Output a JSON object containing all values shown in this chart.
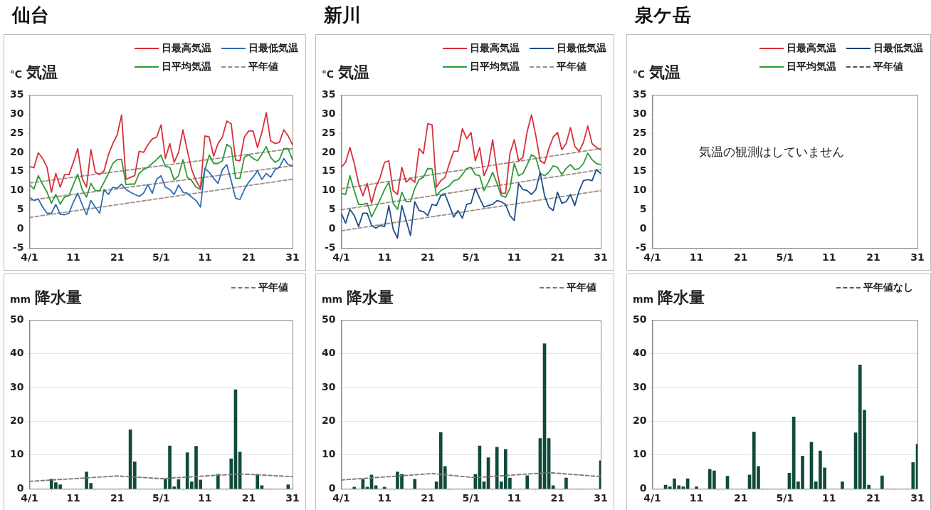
{
  "chart_data": [
    {
      "type": "line",
      "title": "仙台",
      "subtitle": "気温",
      "ylabel": "℃",
      "legend": "top right",
      "xlim": [
        "--04-01",
        "--05-31"
      ],
      "ylim": [
        -5,
        35
      ],
      "yticks": [
        -5,
        0,
        5,
        10,
        15,
        20,
        25,
        30,
        35
      ],
      "xticks": [
        {
          "value": "--04-01",
          "label": "4/1"
        },
        {
          "value": "--04-11",
          "label": "11"
        },
        {
          "value": "--04-21",
          "label": "21"
        },
        {
          "value": "--05-01",
          "label": "5/1"
        },
        {
          "value": "--05-11",
          "label": "11"
        },
        {
          "value": "--05-21",
          "label": "21"
        },
        {
          "value": "--05-31",
          "label": "31"
        }
      ],
      "x": [
        "--04-01",
        "--04-02",
        "--04-03",
        "--04-04",
        "--04-05",
        "--04-06",
        "--04-07",
        "--04-08",
        "--04-09",
        "--04-10",
        "--04-11",
        "--04-12",
        "--04-13",
        "--04-14",
        "--04-15",
        "--04-16",
        "--04-17",
        "--04-18",
        "--04-19",
        "--04-20",
        "--04-21",
        "--04-22",
        "--04-23",
        "--04-24",
        "--04-25",
        "--04-26",
        "--04-27",
        "--04-28",
        "--04-29",
        "--04-30",
        "--05-01",
        "--05-02",
        "--05-03",
        "--05-04",
        "--05-05",
        "--05-06",
        "--05-07",
        "--05-08",
        "--05-09",
        "--05-10",
        "--05-11",
        "--05-12",
        "--05-13",
        "--05-14",
        "--05-15",
        "--05-16",
        "--05-17",
        "--05-18",
        "--05-19",
        "--05-20",
        "--05-21",
        "--05-22",
        "--05-23",
        "--05-24",
        "--05-25",
        "--05-26",
        "--05-27",
        "--05-28",
        "--05-29",
        "--05-30",
        "--05-31"
      ],
      "series": [
        {
          "name": "日最高気温",
          "color": "#d7303a",
          "values": [
            16.3,
            16.0,
            19.9,
            18.4,
            16.1,
            9.6,
            14.5,
            10.9,
            14.2,
            14.2,
            17.4,
            21.0,
            13.2,
            10.9,
            20.7,
            14.8,
            14.2,
            15.2,
            19.4,
            22.3,
            24.6,
            29.8,
            12.9,
            13.5,
            13.9,
            20.3,
            20.0,
            22.0,
            23.5,
            24.0,
            27.2,
            18.4,
            22.3,
            17.4,
            20.0,
            25.9,
            20.4,
            15.5,
            12.6,
            10.6,
            24.3,
            24.0,
            19.0,
            22.3,
            24.0,
            28.2,
            27.5,
            18.0,
            17.8,
            24.0,
            25.6,
            25.6,
            21.3,
            25.2,
            30.4,
            23.0,
            22.3,
            22.6,
            25.9,
            24.3,
            22.0
          ]
        },
        {
          "name": "日最低気温",
          "color": "#2f6db5",
          "values": [
            8.3,
            7.4,
            7.8,
            5.7,
            4.1,
            4.1,
            6.4,
            3.8,
            3.7,
            4.1,
            7.0,
            9.3,
            6.4,
            3.7,
            7.4,
            5.7,
            4.1,
            10.3,
            9.0,
            10.9,
            10.6,
            11.7,
            10.3,
            9.6,
            9.0,
            8.5,
            9.3,
            11.6,
            9.3,
            13.0,
            13.9,
            10.9,
            10.3,
            9.0,
            11.5,
            9.6,
            9.3,
            8.3,
            7.4,
            5.7,
            15.8,
            14.8,
            13.2,
            11.9,
            15.5,
            16.8,
            12.6,
            8.0,
            7.7,
            10.3,
            12.2,
            13.5,
            15.2,
            12.9,
            14.5,
            13.5,
            15.5,
            16.1,
            18.4,
            16.8,
            16.5
          ]
        },
        {
          "name": "日平均気温",
          "color": "#2e9a3a",
          "values": [
            11.6,
            10.4,
            13.9,
            11.6,
            9.6,
            6.7,
            9.0,
            6.5,
            8.3,
            8.7,
            11.6,
            14.3,
            10.3,
            8.3,
            11.9,
            10.0,
            10.0,
            12.2,
            14.5,
            17.1,
            18.1,
            18.2,
            11.6,
            11.7,
            11.7,
            14.5,
            15.5,
            16.1,
            17.1,
            18.1,
            19.3,
            16.3,
            16.1,
            12.8,
            13.9,
            18.1,
            13.5,
            12.6,
            10.9,
            10.3,
            15.5,
            19.3,
            17.1,
            17.1,
            17.8,
            22.1,
            21.3,
            13.2,
            13.2,
            18.7,
            19.4,
            18.4,
            17.8,
            19.5,
            21.5,
            18.7,
            17.4,
            18.1,
            21.0,
            21.0,
            18.1
          ]
        },
        {
          "name": "平年値",
          "color": "#9b9089",
          "line_style": "dashed",
          "x": [
            "--04-01",
            "--05-31"
          ],
          "values": [
            12,
            21
          ]
        },
        {
          "color": "#9b9089",
          "line_style": "dashed",
          "x": [
            "--04-01",
            "--05-31"
          ],
          "values": [
            7.5,
            16.5
          ]
        },
        {
          "color": "#9b9089",
          "line_style": "dashed",
          "x": [
            "--04-01",
            "--05-31"
          ],
          "values": [
            3,
            13
          ]
        }
      ]
    },
    {
      "type": "line",
      "title": "新川",
      "subtitle": "気温",
      "ylabel": "℃",
      "legend": "top right",
      "xlim": [
        "--04-01",
        "--05-31"
      ],
      "ylim": [
        -5,
        35
      ],
      "yticks": [
        -5,
        0,
        5,
        10,
        15,
        20,
        25,
        30,
        35
      ],
      "xticks": [
        {
          "value": "--04-01",
          "label": "4/1"
        },
        {
          "value": "--04-11",
          "label": "11"
        },
        {
          "value": "--04-21",
          "label": "21"
        },
        {
          "value": "--05-01",
          "label": "5/1"
        },
        {
          "value": "--05-11",
          "label": "11"
        },
        {
          "value": "--05-21",
          "label": "21"
        },
        {
          "value": "--05-31",
          "label": "31"
        }
      ],
      "x": [
        "--04-01",
        "--04-02",
        "--04-03",
        "--04-04",
        "--04-05",
        "--04-06",
        "--04-07",
        "--04-08",
        "--04-09",
        "--04-10",
        "--04-11",
        "--04-12",
        "--04-13",
        "--04-14",
        "--04-15",
        "--04-16",
        "--04-17",
        "--04-18",
        "--04-19",
        "--04-20",
        "--04-21",
        "--04-22",
        "--04-23",
        "--04-24",
        "--04-25",
        "--04-26",
        "--04-27",
        "--04-28",
        "--04-29",
        "--04-30",
        "--05-01",
        "--05-02",
        "--05-03",
        "--05-04",
        "--05-05",
        "--05-06",
        "--05-07",
        "--05-08",
        "--05-09",
        "--05-10",
        "--05-11",
        "--05-12",
        "--05-13",
        "--05-14",
        "--05-15",
        "--05-16",
        "--05-17",
        "--05-18",
        "--05-19",
        "--05-20",
        "--05-21",
        "--05-22",
        "--05-23",
        "--05-24",
        "--05-25",
        "--05-26",
        "--05-27",
        "--05-28",
        "--05-29",
        "--05-30",
        "--05-31"
      ],
      "series": [
        {
          "name": "日最高気温",
          "color": "#d7303a",
          "values": [
            16.1,
            17.4,
            21.3,
            17.1,
            11.9,
            8.7,
            11.9,
            6.7,
            10.9,
            13.5,
            17.4,
            17.8,
            10.0,
            9.0,
            16.1,
            12.2,
            13.2,
            12.2,
            21.0,
            19.7,
            27.5,
            27.2,
            10.9,
            12.6,
            13.5,
            17.1,
            20.3,
            20.3,
            26.2,
            23.6,
            25.2,
            17.8,
            21.3,
            13.9,
            16.5,
            23.3,
            15.2,
            9.3,
            9.3,
            19.7,
            23.3,
            17.8,
            18.7,
            25.5,
            29.8,
            24.3,
            17.8,
            17.1,
            21.0,
            24.0,
            25.2,
            20.7,
            22.3,
            26.5,
            21.6,
            20.3,
            22.6,
            26.9,
            22.3,
            21.3,
            20.7
          ]
        },
        {
          "name": "日最低気温",
          "color": "#1f4e8c",
          "values": [
            4.1,
            1.5,
            5.1,
            3.5,
            0.6,
            4.1,
            4.1,
            0.9,
            0.2,
            0.9,
            0.6,
            6.1,
            -0.1,
            -2.4,
            6.1,
            2.2,
            -1.7,
            7.1,
            4.8,
            4.5,
            3.5,
            6.4,
            6.1,
            8.7,
            9.0,
            6.1,
            3.1,
            4.8,
            2.8,
            6.4,
            6.7,
            10.6,
            8.0,
            5.7,
            6.1,
            6.4,
            7.4,
            7.1,
            6.4,
            3.5,
            2.2,
            11.9,
            10.3,
            10.0,
            9.0,
            10.3,
            14.8,
            8.7,
            5.7,
            4.8,
            9.6,
            6.7,
            7.1,
            9.0,
            6.1,
            10.0,
            12.6,
            12.9,
            12.6,
            15.5,
            14.5
          ]
        },
        {
          "name": "日平均気温",
          "color": "#2e9a3a",
          "values": [
            9.3,
            9.0,
            13.9,
            10.0,
            6.4,
            6.4,
            6.7,
            3.1,
            5.4,
            7.7,
            10.3,
            12.2,
            6.7,
            5.1,
            9.6,
            7.1,
            7.1,
            10.6,
            12.9,
            13.5,
            15.8,
            15.7,
            8.7,
            10.0,
            10.6,
            11.3,
            12.6,
            12.9,
            14.2,
            15.8,
            16.1,
            14.2,
            13.9,
            10.0,
            12.2,
            14.8,
            11.9,
            8.7,
            8.3,
            10.6,
            17.1,
            13.9,
            14.5,
            16.8,
            19.4,
            18.7,
            14.5,
            13.9,
            14.8,
            16.5,
            16.1,
            14.2,
            15.8,
            16.8,
            15.5,
            15.8,
            17.1,
            19.8,
            18.1,
            17.1,
            16.8
          ]
        },
        {
          "name": "平年値",
          "color": "#9b9089",
          "line_style": "dashed",
          "x": [
            "--04-01",
            "--05-31"
          ],
          "values": [
            10.5,
            21
          ]
        },
        {
          "color": "#9b9089",
          "line_style": "dashed",
          "x": [
            "--04-01",
            "--05-31"
          ],
          "values": [
            5,
            15.5
          ]
        },
        {
          "color": "#9b9089",
          "line_style": "dashed",
          "x": [
            "--04-01",
            "--05-31"
          ],
          "values": [
            -0.5,
            10
          ]
        }
      ]
    },
    {
      "type": "line",
      "title": "泉ケ岳",
      "subtitle": "気温",
      "ylabel": "℃",
      "legend": "top right",
      "ylim": [
        -5,
        35
      ],
      "yticks": [
        -5,
        0,
        5,
        10,
        15,
        20,
        25,
        30,
        35
      ],
      "categories": [
        "4/1",
        null,
        null,
        null,
        null,
        null,
        null,
        null,
        null,
        null,
        "11",
        null,
        null,
        null,
        null,
        null,
        null,
        null,
        null,
        null,
        "21",
        null,
        null,
        null,
        null,
        null,
        null,
        null,
        null,
        null,
        "5/1",
        null,
        null,
        null,
        null,
        null,
        null,
        null,
        null,
        null,
        "11",
        null,
        null,
        null,
        null,
        null,
        null,
        null,
        null,
        null,
        "21",
        null,
        null,
        null,
        null,
        null,
        null,
        null,
        null,
        null,
        "31"
      ],
      "annotations": [
        "気温の観測はしていません"
      ],
      "series": [
        {
          "name": "日最高気温",
          "color": "#d7303a",
          "values": [
            null,
            null,
            null,
            null,
            null,
            null,
            null,
            null,
            null,
            null,
            null,
            null,
            null,
            null,
            null,
            null,
            null,
            null,
            null,
            null,
            null,
            null,
            null,
            null,
            null,
            null,
            null,
            null,
            null,
            null,
            null,
            null,
            null,
            null,
            null,
            null,
            null,
            null,
            null,
            null,
            null,
            null,
            null,
            null,
            null,
            null,
            null,
            null,
            null,
            null,
            null,
            null,
            null,
            null,
            null,
            null,
            null,
            null,
            null,
            null,
            null
          ]
        },
        {
          "name": "日最低気温",
          "color": "#143c78",
          "values": [
            null,
            null,
            null,
            null,
            null,
            null,
            null,
            null,
            null,
            null,
            null,
            null,
            null,
            null,
            null,
            null,
            null,
            null,
            null,
            null,
            null,
            null,
            null,
            null,
            null,
            null,
            null,
            null,
            null,
            null,
            null,
            null,
            null,
            null,
            null,
            null,
            null,
            null,
            null,
            null,
            null,
            null,
            null,
            null,
            null,
            null,
            null,
            null,
            null,
            null,
            null,
            null,
            null,
            null,
            null,
            null,
            null,
            null,
            null,
            null,
            null
          ]
        },
        {
          "name": "日平均気温",
          "color": "#2e9a3a",
          "values": [
            null,
            null,
            null,
            null,
            null,
            null,
            null,
            null,
            null,
            null,
            null,
            null,
            null,
            null,
            null,
            null,
            null,
            null,
            null,
            null,
            null,
            null,
            null,
            null,
            null,
            null,
            null,
            null,
            null,
            null,
            null,
            null,
            null,
            null,
            null,
            null,
            null,
            null,
            null,
            null,
            null,
            null,
            null,
            null,
            null,
            null,
            null,
            null,
            null,
            null,
            null,
            null,
            null,
            null,
            null,
            null,
            null,
            null,
            null,
            null,
            null
          ]
        },
        {
          "name": "平年値",
          "color": "#555555",
          "line_style": "dashed",
          "values": [
            null,
            null,
            null,
            null,
            null,
            null,
            null,
            null,
            null,
            null,
            null,
            null,
            null,
            null,
            null,
            null,
            null,
            null,
            null,
            null,
            null,
            null,
            null,
            null,
            null,
            null,
            null,
            null,
            null,
            null,
            null,
            null,
            null,
            null,
            null,
            null,
            null,
            null,
            null,
            null,
            null,
            null,
            null,
            null,
            null,
            null,
            null,
            null,
            null,
            null,
            null,
            null,
            null,
            null,
            null,
            null,
            null,
            null,
            null,
            null,
            null
          ]
        }
      ]
    },
    {
      "type": "bar",
      "subtitle": "降水量",
      "ylabel": "mm",
      "legend": "top right",
      "grid": "y",
      "xlim": [
        "--04-01",
        "--05-31"
      ],
      "ylim": [
        0,
        50
      ],
      "yticks": [
        0,
        10,
        20,
        30,
        40,
        50
      ],
      "xticks": [
        {
          "value": "--04-01",
          "label": "4/1"
        },
        {
          "value": "--04-11",
          "label": "11"
        },
        {
          "value": "--04-21",
          "label": "21"
        },
        {
          "value": "--05-01",
          "label": "5/1"
        },
        {
          "value": "--05-11",
          "label": "11"
        },
        {
          "value": "--05-21",
          "label": "21"
        },
        {
          "value": "--05-31",
          "label": "31"
        }
      ],
      "series": [
        {
          "color": "#0f4a3c",
          "x": [
            "--04-06",
            "--04-07",
            "--04-08",
            "--04-14",
            "--04-15",
            "--04-24",
            "--04-25",
            "--05-02",
            "--05-03",
            "--05-04",
            "--05-05",
            "--05-07",
            "--05-08",
            "--05-09",
            "--05-10",
            "--05-14",
            "--05-17",
            "--05-18",
            "--05-19",
            "--05-23",
            "--05-24",
            "--05-30"
          ],
          "values": [
            2.9,
            1.8,
            1.2,
            5.0,
            1.6,
            17.5,
            8.0,
            2.9,
            12.7,
            0.6,
            2.7,
            10.7,
            2.1,
            12.6,
            2.6,
            4.3,
            8.9,
            29.4,
            10.9,
            4.3,
            0.9,
            1.2
          ]
        },
        {
          "name": "平年値",
          "type": "line",
          "color": "#7f7670",
          "line_style": "dashed",
          "x": [
            "--04-01",
            "--04-21",
            "--05-01",
            "--05-19",
            "--05-31"
          ],
          "values": [
            2.2,
            3.8,
            3.0,
            4.4,
            3.6
          ]
        }
      ]
    },
    {
      "type": "bar",
      "subtitle": "降水量",
      "ylabel": "mm",
      "legend": "top right",
      "grid": "y",
      "xlim": [
        "--04-01",
        "--05-31"
      ],
      "ylim": [
        0,
        50
      ],
      "yticks": [
        0,
        10,
        20,
        30,
        40,
        50
      ],
      "xticks": [
        {
          "value": "--04-01",
          "label": "4/1"
        },
        {
          "value": "--04-11",
          "label": "11"
        },
        {
          "value": "--04-21",
          "label": "21"
        },
        {
          "value": "--05-01",
          "label": "5/1"
        },
        {
          "value": "--05-11",
          "label": "11"
        },
        {
          "value": "--05-21",
          "label": "21"
        },
        {
          "value": "--05-31",
          "label": "31"
        }
      ],
      "series": [
        {
          "color": "#0f4a3c",
          "x": [
            "--04-04",
            "--04-06",
            "--04-07",
            "--04-08",
            "--04-09",
            "--04-11",
            "--04-14",
            "--04-15",
            "--04-18",
            "--04-23",
            "--04-24",
            "--04-25",
            "--05-02",
            "--05-03",
            "--05-04",
            "--05-05",
            "--05-07",
            "--05-08",
            "--05-09",
            "--05-10",
            "--05-14",
            "--05-17",
            "--05-18",
            "--05-19",
            "--05-20",
            "--05-23",
            "--05-31"
          ],
          "values": [
            0.5,
            2.8,
            0.5,
            4.1,
            0.9,
            0.5,
            5.0,
            4.3,
            2.8,
            2.1,
            16.7,
            6.6,
            4.3,
            12.7,
            2.1,
            9.2,
            12.3,
            2.1,
            11.7,
            3.2,
            3.9,
            14.9,
            43.0,
            14.9,
            0.9,
            3.2,
            8.3
          ]
        },
        {
          "name": "平年値",
          "type": "line",
          "color": "#7f7670",
          "line_style": "dashed",
          "x": [
            "--04-01",
            "--04-22",
            "--05-02",
            "--05-19",
            "--05-31"
          ],
          "values": [
            2.6,
            4.5,
            3.3,
            4.8,
            3.6
          ]
        }
      ]
    },
    {
      "type": "bar",
      "subtitle": "降水量",
      "ylabel": "mm",
      "legend": "top right",
      "grid": "y",
      "xlim": [
        "--04-01",
        "--05-31"
      ],
      "ylim": [
        0,
        50
      ],
      "yticks": [
        0,
        10,
        20,
        30,
        40,
        50
      ],
      "xticks": [
        {
          "value": "--04-01",
          "label": "4/1"
        },
        {
          "value": "--04-11",
          "label": "11"
        },
        {
          "value": "--04-21",
          "label": "21"
        },
        {
          "value": "--05-01",
          "label": "5/1"
        },
        {
          "value": "--05-11",
          "label": "11"
        },
        {
          "value": "--05-21",
          "label": "21"
        },
        {
          "value": "--05-31",
          "label": "31"
        }
      ],
      "series": [
        {
          "color": "#0f4a3c",
          "x": [
            "--04-04",
            "--04-05",
            "--04-06",
            "--04-07",
            "--04-08",
            "--04-09",
            "--04-11",
            "--04-14",
            "--04-15",
            "--04-18",
            "--04-23",
            "--04-24",
            "--04-25",
            "--05-02",
            "--05-03",
            "--05-04",
            "--05-05",
            "--05-07",
            "--05-08",
            "--05-09",
            "--05-10",
            "--05-14",
            "--05-17",
            "--05-18",
            "--05-19",
            "--05-20",
            "--05-23",
            "--05-30",
            "--05-31"
          ],
          "values": [
            1.1,
            0.6,
            3.0,
            0.9,
            0.6,
            3.0,
            0.6,
            5.8,
            5.3,
            3.7,
            4.1,
            16.8,
            6.6,
            4.6,
            21.3,
            2.1,
            9.7,
            13.8,
            2.1,
            11.2,
            6.2,
            2.1,
            16.6,
            36.7,
            23.3,
            1.1,
            3.8,
            7.8,
            13.2
          ]
        },
        {
          "name": "平年値なし",
          "type": "line",
          "color": "#555555",
          "line_style": "dashed"
        }
      ]
    }
  ]
}
